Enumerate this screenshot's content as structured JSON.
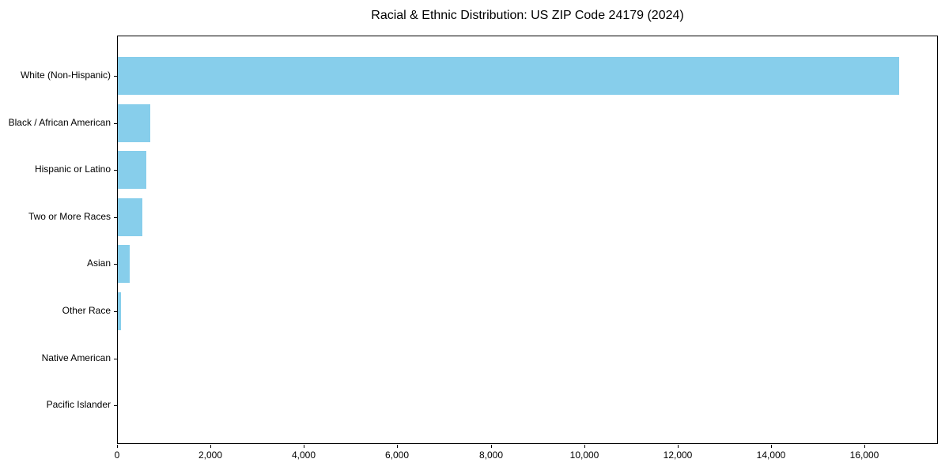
{
  "chart_data": {
    "type": "bar",
    "orientation": "horizontal",
    "title": "Racial & Ethnic Distribution: US ZIP Code 24179 (2024)",
    "categories": [
      "White (Non-Hispanic)",
      "Black / African American",
      "Hispanic or Latino",
      "Two or More Races",
      "Asian",
      "Other Race",
      "Native American",
      "Pacific Islander"
    ],
    "values": [
      16730,
      690,
      605,
      520,
      255,
      70,
      0,
      0
    ],
    "xlabel": "",
    "ylabel": "",
    "xlim": [
      0,
      17570
    ],
    "x_ticks": [
      0,
      2000,
      4000,
      6000,
      8000,
      10000,
      12000,
      14000,
      16000
    ],
    "x_tick_labels": [
      "0",
      "2,000",
      "4,000",
      "6,000",
      "8,000",
      "10,000",
      "12,000",
      "14,000",
      "16,000"
    ],
    "bar_color": "#87CEEB",
    "frame_color": "#000000",
    "text_color": "#000000",
    "background_color": "#ffffff",
    "grid": false,
    "legend": "none"
  }
}
